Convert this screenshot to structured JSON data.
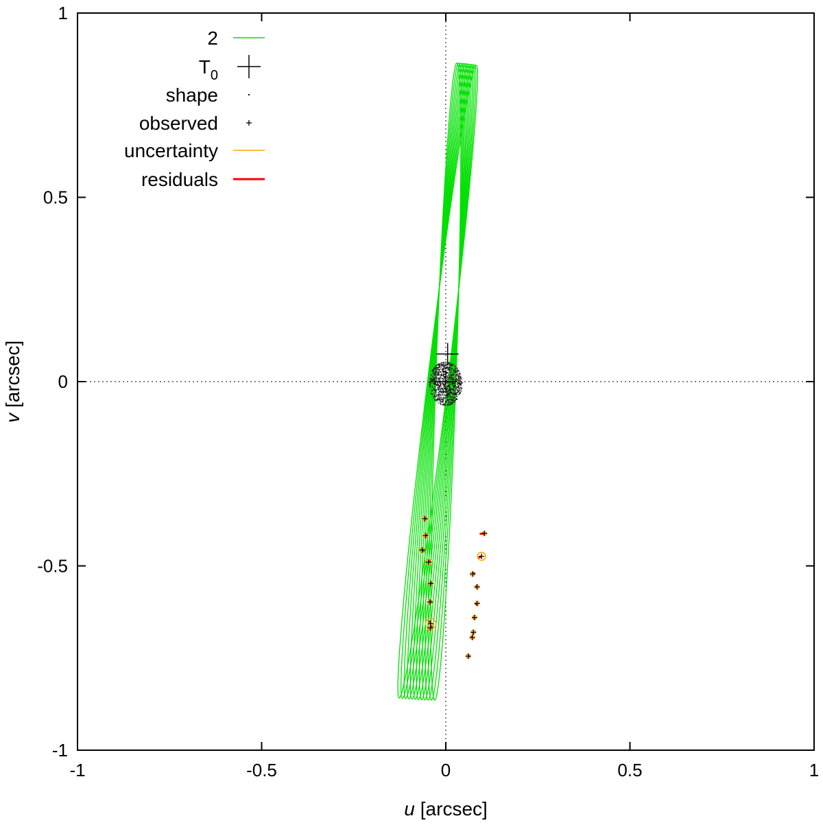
{
  "chart_data": {
    "type": "scatter",
    "title": "",
    "xlabel": {
      "var": "u",
      "unit": "[arcsec]"
    },
    "ylabel": {
      "var": "v",
      "unit": "[arcsec]"
    },
    "xlim": [
      -1,
      1
    ],
    "ylim": [
      -1,
      1
    ],
    "x_ticks": [
      {
        "value": -1,
        "label": "-1"
      },
      {
        "value": -0.5,
        "label": "-0.5"
      },
      {
        "value": 0,
        "label": "0"
      },
      {
        "value": 0.5,
        "label": "0.5"
      },
      {
        "value": 1,
        "label": "1"
      }
    ],
    "y_ticks": [
      {
        "value": -1,
        "label": "-1"
      },
      {
        "value": -0.5,
        "label": "-0.5"
      },
      {
        "value": 0,
        "label": "0"
      },
      {
        "value": 0.5,
        "label": "0.5"
      },
      {
        "value": 1,
        "label": "1"
      }
    ],
    "zero_lines": true,
    "grid": false,
    "legend_position": "top-left",
    "legend": [
      {
        "label": "2",
        "sub": "",
        "style": "line",
        "color": "#00e000"
      },
      {
        "label": "T",
        "sub": "0",
        "style": "big-plus",
        "color": "#000000"
      },
      {
        "label": "shape",
        "sub": "",
        "style": "dot",
        "color": "#000000"
      },
      {
        "label": "observed",
        "sub": "",
        "style": "small-plus",
        "color": "#000000"
      },
      {
        "label": "uncertainty",
        "sub": "",
        "style": "line",
        "color": "#ffa500"
      },
      {
        "label": "residuals",
        "sub": "",
        "style": "thick-line",
        "color": "#ff0000"
      }
    ],
    "series": [
      {
        "name": "2",
        "kind": "orbit-ellipses",
        "color": "#00e000",
        "count": 12,
        "center_start": [
          0.0,
          0.0
        ],
        "center_step": [
          -0.002,
          0.0
        ],
        "semi_major": 0.865,
        "semi_minor": 0.0275,
        "tilt_start_deg": 2.0,
        "tilt_step_deg": 0.45
      },
      {
        "name": "T0",
        "kind": "marker",
        "color": "#000000",
        "points": [
          {
            "x": 0.0,
            "y": 0.0
          },
          {
            "x": 0.005,
            "y": 0.075
          }
        ]
      },
      {
        "name": "shape",
        "kind": "dot-cloud",
        "color": "#000000",
        "center": [
          0.0,
          -0.005
        ],
        "radius_x": 0.045,
        "radius_y": 0.06,
        "count": 900
      },
      {
        "name": "observed",
        "kind": "points",
        "color": "#000000",
        "points": [
          {
            "x": -0.057,
            "y": -0.372,
            "sigma": 0.006,
            "model": [
              -0.053,
              -0.371
            ]
          },
          {
            "x": -0.055,
            "y": -0.418,
            "sigma": 0.006,
            "model": [
              -0.05,
              -0.416
            ]
          },
          {
            "x": -0.064,
            "y": -0.457,
            "sigma": 0.007,
            "model": [
              -0.058,
              -0.459
            ]
          },
          {
            "x": -0.047,
            "y": -0.49,
            "sigma": 0.008,
            "model": [
              -0.043,
              -0.486
            ]
          },
          {
            "x": -0.041,
            "y": -0.548,
            "sigma": 0.004,
            "model": [
              -0.038,
              -0.545
            ]
          },
          {
            "x": -0.043,
            "y": -0.598,
            "sigma": 0.004,
            "model": [
              -0.04,
              -0.594
            ]
          },
          {
            "x": -0.041,
            "y": -0.657,
            "sigma": 0.014,
            "model": [
              -0.045,
              -0.648
            ]
          },
          {
            "x": -0.042,
            "y": -0.668,
            "sigma": 0.007,
            "model": [
              -0.037,
              -0.662
            ]
          },
          {
            "x": 0.105,
            "y": -0.412,
            "sigma": 0.005,
            "model": [
              0.092,
              -0.413
            ]
          },
          {
            "x": 0.097,
            "y": -0.474,
            "sigma": 0.011,
            "model": [
              0.089,
              -0.478
            ]
          },
          {
            "x": 0.073,
            "y": -0.522,
            "sigma": 0.006,
            "model": [
              0.079,
              -0.519
            ]
          },
          {
            "x": 0.085,
            "y": -0.557,
            "sigma": 0.004,
            "model": [
              0.081,
              -0.555
            ]
          },
          {
            "x": 0.085,
            "y": -0.602,
            "sigma": 0.004,
            "model": [
              0.08,
              -0.604
            ]
          },
          {
            "x": 0.078,
            "y": -0.64,
            "sigma": 0.004,
            "model": [
              0.075,
              -0.641
            ]
          },
          {
            "x": 0.075,
            "y": -0.68,
            "sigma": 0.004,
            "model": [
              0.073,
              -0.683
            ]
          },
          {
            "x": 0.072,
            "y": -0.694,
            "sigma": 0.004,
            "model": [
              0.07,
              -0.691
            ]
          },
          {
            "x": 0.061,
            "y": -0.745,
            "sigma": 0.004,
            "model": [
              0.064,
              -0.743
            ]
          }
        ]
      }
    ]
  }
}
